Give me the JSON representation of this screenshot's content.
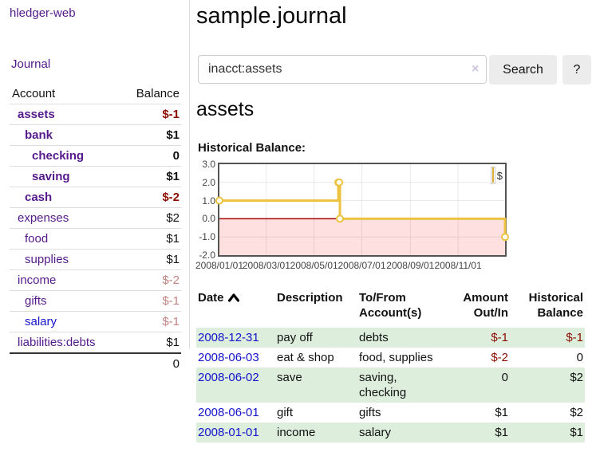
{
  "colors": {
    "purple": "#551a8b",
    "blue": "#1414cc",
    "neg_strong": "#8b0d00",
    "neg_soft": "#c28282",
    "gold": "#edc240",
    "pink_fill": "rgba(255,0,0,0.12)",
    "zero_line": "#a50000",
    "grid": "#e8e8e8",
    "row_green": "#ddeedd"
  },
  "brand": {
    "label": "hledger-web"
  },
  "nav": {
    "journal": "Journal"
  },
  "sidebar": {
    "header": {
      "account": "Account",
      "balance": "Balance"
    },
    "accounts": [
      {
        "name": "assets",
        "balance": "$-1",
        "depth": 1,
        "matched": true
      },
      {
        "name": "bank",
        "balance": "$1",
        "depth": 2,
        "matched": true
      },
      {
        "name": "checking",
        "balance": "0",
        "depth": 3,
        "matched": true
      },
      {
        "name": "saving",
        "balance": "$1",
        "depth": 3,
        "matched": true
      },
      {
        "name": "cash",
        "balance": "$-2",
        "depth": 2,
        "matched": true
      },
      {
        "name": "expenses",
        "balance": "$2",
        "depth": 1,
        "matched": false
      },
      {
        "name": "food",
        "balance": "$1",
        "depth": 2,
        "matched": false
      },
      {
        "name": "supplies",
        "balance": "$1",
        "depth": 2,
        "matched": false
      },
      {
        "name": "income",
        "balance": "$-2",
        "depth": 1,
        "matched": false
      },
      {
        "name": "gifts",
        "balance": "$-1",
        "depth": 2,
        "matched": false
      },
      {
        "name": "salary",
        "balance": "$-1",
        "depth": 2,
        "matched": false,
        "link_style": "blue"
      },
      {
        "name": "liabilities:debts",
        "balance": "$1",
        "depth": 1,
        "matched": false
      }
    ],
    "total": "0"
  },
  "header": {
    "title": "sample.journal"
  },
  "search": {
    "value": "inacct:assets",
    "clear_icon": "×",
    "search_button": "Search",
    "help_button": "?"
  },
  "account_page": {
    "heading": "assets",
    "chart_label": "Historical Balance:"
  },
  "chart_data": {
    "type": "line",
    "steps": true,
    "title": "Historical Balance",
    "legend": "$",
    "legend_position": "top-right",
    "x_range": [
      "2008/01/01",
      "2008/12/31"
    ],
    "y_range": [
      -2,
      3
    ],
    "x_ticks": [
      "2008/01/01",
      "2008/03/01",
      "2008/05/01",
      "2008/07/01",
      "2008/09/01",
      "2008/11/01"
    ],
    "y_ticks": [
      3.0,
      2.0,
      1.0,
      0.0,
      -1.0,
      -2.0
    ],
    "negative_region_below": 0,
    "series": [
      {
        "name": "$",
        "points": [
          [
            "2008/01/01",
            1
          ],
          [
            "2008/06/01",
            2
          ],
          [
            "2008/06/02",
            2
          ],
          [
            "2008/06/03",
            0
          ],
          [
            "2008/12/31",
            -1
          ]
        ]
      }
    ]
  },
  "register": {
    "columns": [
      {
        "label": "Date",
        "align": "left",
        "sort": "ascending"
      },
      {
        "label": "Description",
        "align": "left"
      },
      {
        "label": "To/From\nAccount(s)",
        "align": "left"
      },
      {
        "label": "Amount\nOut/In",
        "align": "right"
      },
      {
        "label": "Historical\nBalance",
        "align": "right"
      }
    ],
    "rows": [
      {
        "date": "2008-12-31",
        "description": "pay off",
        "accounts": "debts",
        "amount": "$-1",
        "balance": "$-1"
      },
      {
        "date": "2008-06-03",
        "description": "eat & shop",
        "accounts": "food, supplies",
        "amount": "$-2",
        "balance": "0"
      },
      {
        "date": "2008-06-02",
        "description": "save",
        "accounts": "saving, checking",
        "amount": "0",
        "balance": "$2"
      },
      {
        "date": "2008-06-01",
        "description": "gift",
        "accounts": "gifts",
        "amount": "$1",
        "balance": "$2"
      },
      {
        "date": "2008-01-01",
        "description": "income",
        "accounts": "salary",
        "amount": "$1",
        "balance": "$1"
      }
    ]
  }
}
